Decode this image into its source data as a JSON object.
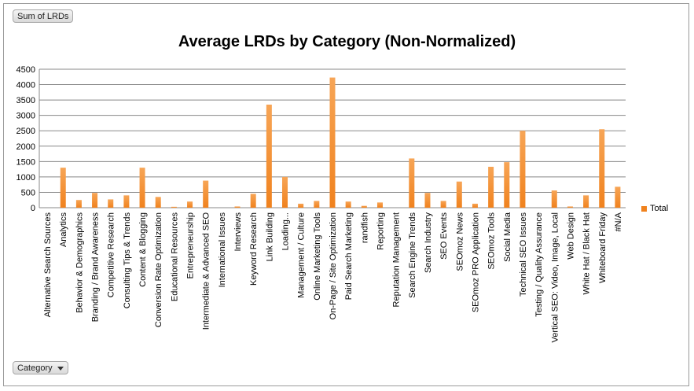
{
  "controls": {
    "sum_label": "Sum of LRDs",
    "category_label": "Category"
  },
  "legend": {
    "label": "Total"
  },
  "colors": {
    "bar": "#f0821e",
    "bar_light": "#f7a556",
    "grid": "#888888"
  },
  "chart_data": {
    "type": "bar",
    "title": "Average LRDs by Category (Non-Normalized)",
    "xlabel": "",
    "ylabel": "",
    "ylim": [
      0,
      4500
    ],
    "yticks": [
      0,
      500,
      1000,
      1500,
      2000,
      2500,
      3000,
      3500,
      4000,
      4500
    ],
    "grid": true,
    "legend_position": "right",
    "categories": [
      "Alternative Search Sources",
      "Analytics",
      "Behavior & Demographics",
      "Branding / Brand Awareness",
      "Competitive Research",
      "Consulting Tips & Trends",
      "Content & Blogging",
      "Conversion Rate Optimization",
      "Educational Resources",
      "Entrepreneurship",
      "Intermediate & Advanced SEO",
      "International Issues",
      "Interviews",
      "Keyword Research",
      "Link Building",
      "Loading...",
      "Management / Culture",
      "Online Marketing Tools",
      "On-Page / Site Optimization",
      "Paid Search Marketing",
      "randfish",
      "Reporting",
      "Reputation Management",
      "Search Engine Trends",
      "Search Industry",
      "SEO Events",
      "SEOmoz News",
      "SEOmoz PRO Application",
      "SEOmoz Tools",
      "Social Media",
      "Technical SEO Issues",
      "Testing / Quality Assurance",
      "Vertical SEO: Video, Image, Local",
      "Web Design",
      "White Hat / Black Hat",
      "Whiteboard Friday",
      "#N/A"
    ],
    "series": [
      {
        "name": "Total",
        "values": [
          0,
          1300,
          250,
          480,
          270,
          400,
          1300,
          350,
          30,
          200,
          880,
          0,
          40,
          450,
          3350,
          1000,
          130,
          220,
          4230,
          200,
          60,
          170,
          0,
          1600,
          480,
          220,
          850,
          130,
          1330,
          1480,
          2500,
          0,
          560,
          40,
          400,
          2550,
          680
        ]
      }
    ]
  }
}
